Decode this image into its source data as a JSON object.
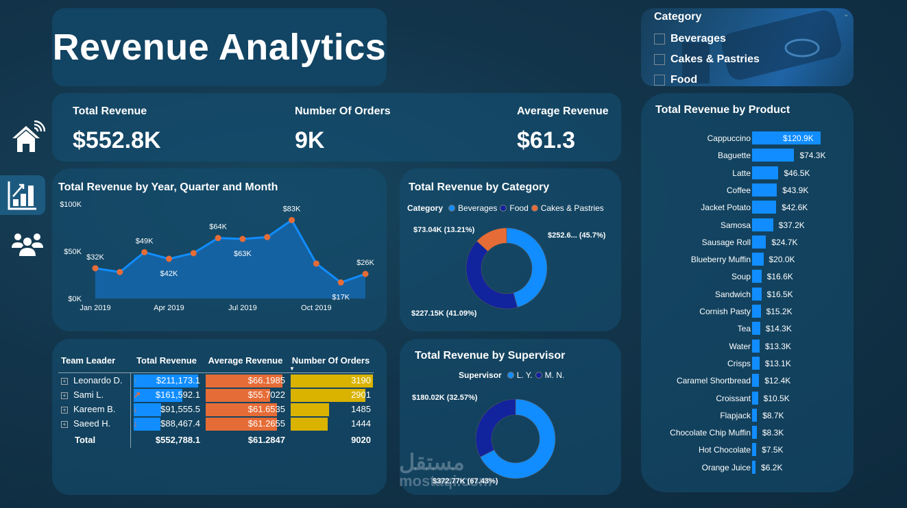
{
  "title": "Revenue Analytics",
  "sidebar": {
    "items": [
      {
        "name": "home",
        "icon": "home-icon"
      },
      {
        "name": "analytics",
        "icon": "bar-chart-icon",
        "active": true
      },
      {
        "name": "team",
        "icon": "users-icon"
      }
    ]
  },
  "kpis": [
    {
      "label": "Total Revenue",
      "value": "$552.8K"
    },
    {
      "label": "Number Of Orders",
      "value": "9K"
    },
    {
      "label": "Average Revenue",
      "value": "$61.3"
    }
  ],
  "slicer": {
    "title": "Category",
    "options": [
      {
        "label": "Beverages",
        "checked": false
      },
      {
        "label": "Cakes & Pastries",
        "checked": false
      },
      {
        "label": "Food",
        "checked": false
      }
    ]
  },
  "colors": {
    "blue": "#118dff",
    "navy": "#12239e",
    "orange": "#e66c37",
    "gold": "#d9b300"
  },
  "chart_data": [
    {
      "type": "area",
      "title": "Total Revenue by Year, Quarter and Month",
      "x": [
        "Jan 2019",
        "Feb 2019",
        "Mar 2019",
        "Apr 2019",
        "May 2019",
        "Jun 2019",
        "Jul 2019",
        "Aug 2019",
        "Sep 2019",
        "Oct 2019",
        "Nov 2019",
        "Dec 2019"
      ],
      "values": [
        32,
        28,
        49,
        42,
        48,
        64,
        63,
        65,
        83,
        37,
        17,
        26
      ],
      "point_labels": [
        "$32K",
        "",
        "$49K",
        "$42K",
        "",
        "$64K",
        "$63K",
        "",
        "$83K",
        "",
        "$17K",
        "$26K"
      ],
      "xticks": [
        "Jan 2019",
        "Apr 2019",
        "Jul 2019",
        "Oct 2019"
      ],
      "yticks": [
        "$0K",
        "$50K",
        "$100K"
      ],
      "ylim": [
        0,
        100
      ],
      "unit": "K$"
    },
    {
      "type": "pie",
      "title": "Total Revenue by Category",
      "legend_title": "Category",
      "slices": [
        {
          "name": "Beverages",
          "value": 252.6,
          "label": "$252.6... (45.7%)",
          "color": "#118dff"
        },
        {
          "name": "Food",
          "value": 227.15,
          "label": "$227.15K (41.09%)",
          "color": "#12239e"
        },
        {
          "name": "Cakes & Pastries",
          "value": 73.04,
          "label": "$73.04K (13.21%)",
          "color": "#e66c37"
        }
      ]
    },
    {
      "type": "pie",
      "title": "Total Revenue by Supervisor",
      "legend_title": "Supervisor",
      "slices": [
        {
          "name": "L. Y.",
          "value": 372.77,
          "label": "$372.77K (67.43%)",
          "color": "#118dff"
        },
        {
          "name": "M. N.",
          "value": 180.02,
          "label": "$180.02K (32.57%)",
          "color": "#12239e"
        }
      ]
    },
    {
      "type": "bar",
      "title": "Total Revenue by Product",
      "categories": [
        "Cappuccino",
        "Baguette",
        "Latte",
        "Coffee",
        "Jacket Potato",
        "Samosa",
        "Sausage Roll",
        "Blueberry Muffin",
        "Soup",
        "Sandwich",
        "Cornish Pasty",
        "Tea",
        "Water",
        "Crisps",
        "Caramel Shortbread",
        "Croissant",
        "Flapjack",
        "Chocolate Chip Muffin",
        "Hot Chocolate",
        "Orange Juice"
      ],
      "values": [
        120.9,
        74.3,
        46.5,
        43.9,
        42.6,
        37.2,
        24.7,
        20.0,
        16.6,
        16.5,
        15.2,
        14.3,
        13.3,
        13.1,
        12.4,
        10.5,
        8.7,
        8.3,
        7.5,
        6.2
      ],
      "labels": [
        "$120.9K",
        "$74.3K",
        "$46.5K",
        "$43.9K",
        "$42.6K",
        "$37.2K",
        "$24.7K",
        "$20.0K",
        "$16.6K",
        "$16.5K",
        "$15.2K",
        "$14.3K",
        "$13.3K",
        "$13.1K",
        "$12.4K",
        "$10.5K",
        "$8.7K",
        "$8.3K",
        "$7.5K",
        "$6.2K"
      ]
    }
  ],
  "table": {
    "columns": [
      "Team Leader",
      "Total Revenue",
      "Average Revenue",
      "Number Of Orders"
    ],
    "sort_indicator": "▼",
    "rows": [
      {
        "leader": "Leonardo D.",
        "trend": "up",
        "total": "$211,173.1",
        "total_v": 211173.1,
        "avg": "$66.1985",
        "avg_v": 66.1985,
        "orders": "3190",
        "orders_v": 3190
      },
      {
        "leader": "Sami L.",
        "trend": "up-right",
        "total": "$161,592.1",
        "total_v": 161592.1,
        "avg": "$55.7022",
        "avg_v": 55.7022,
        "orders": "2901",
        "orders_v": 2901
      },
      {
        "leader": "Kareem B.",
        "trend": "down",
        "total": "$91,555.5",
        "total_v": 91555.5,
        "avg": "$61.6535",
        "avg_v": 61.6535,
        "orders": "1485",
        "orders_v": 1485
      },
      {
        "leader": "Saeed H.",
        "trend": "down",
        "total": "$88,467.4",
        "total_v": 88467.4,
        "avg": "$61.2655",
        "avg_v": 61.2655,
        "orders": "1444",
        "orders_v": 1444
      }
    ],
    "total": {
      "label": "Total",
      "total": "$552,788.1",
      "avg": "$61.2847",
      "orders": "9020"
    }
  },
  "watermark": {
    "arabic": "مستقل",
    "latin": "mostaqi.com"
  }
}
